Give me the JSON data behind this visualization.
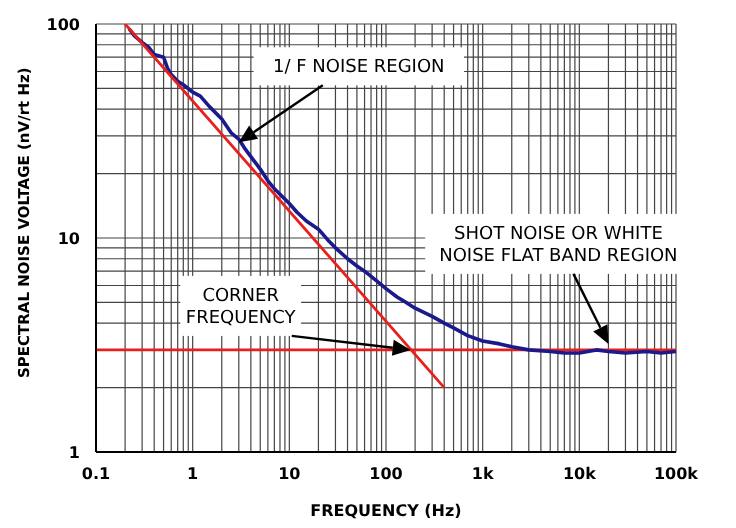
{
  "chart_data": {
    "type": "line",
    "xlabel": "FREQUENCY  (Hz)",
    "ylabel": "SPECTRAL NOISE VOLTAGE (nV/rt Hz)",
    "log": "xy",
    "grid": true,
    "marker": "none",
    "line_style": "solid",
    "xlim": [
      0.1,
      100000
    ],
    "ylim": [
      1,
      100
    ],
    "xticks": [
      {
        "value": 0.1,
        "label": "0.1"
      },
      {
        "value": 0.2,
        "label": null
      },
      {
        "value": 0.3,
        "label": null
      },
      {
        "value": 0.4,
        "label": null
      },
      {
        "value": 0.5,
        "label": null
      },
      {
        "value": 0.6,
        "label": null
      },
      {
        "value": 0.7,
        "label": null
      },
      {
        "value": 0.8,
        "label": null
      },
      {
        "value": 0.9,
        "label": null
      },
      {
        "value": 1,
        "label": "1"
      },
      {
        "value": 2,
        "label": null
      },
      {
        "value": 3,
        "label": null
      },
      {
        "value": 4,
        "label": null
      },
      {
        "value": 5,
        "label": null
      },
      {
        "value": 6,
        "label": null
      },
      {
        "value": 7,
        "label": null
      },
      {
        "value": 8,
        "label": null
      },
      {
        "value": 9,
        "label": null
      },
      {
        "value": 10,
        "label": "10"
      },
      {
        "value": 20,
        "label": null
      },
      {
        "value": 30,
        "label": null
      },
      {
        "value": 40,
        "label": null
      },
      {
        "value": 50,
        "label": null
      },
      {
        "value": 60,
        "label": null
      },
      {
        "value": 70,
        "label": null
      },
      {
        "value": 80,
        "label": null
      },
      {
        "value": 90,
        "label": null
      },
      {
        "value": 100,
        "label": "100"
      },
      {
        "value": 200,
        "label": null
      },
      {
        "value": 300,
        "label": null
      },
      {
        "value": 400,
        "label": null
      },
      {
        "value": 500,
        "label": null
      },
      {
        "value": 600,
        "label": null
      },
      {
        "value": 700,
        "label": null
      },
      {
        "value": 800,
        "label": null
      },
      {
        "value": 900,
        "label": null
      },
      {
        "value": 1000,
        "label": "1k"
      },
      {
        "value": 2000,
        "label": null
      },
      {
        "value": 3000,
        "label": null
      },
      {
        "value": 4000,
        "label": null
      },
      {
        "value": 5000,
        "label": null
      },
      {
        "value": 6000,
        "label": null
      },
      {
        "value": 7000,
        "label": null
      },
      {
        "value": 8000,
        "label": null
      },
      {
        "value": 9000,
        "label": null
      },
      {
        "value": 10000,
        "label": "10k"
      },
      {
        "value": 20000,
        "label": null
      },
      {
        "value": 30000,
        "label": null
      },
      {
        "value": 40000,
        "label": null
      },
      {
        "value": 50000,
        "label": null
      },
      {
        "value": 60000,
        "label": null
      },
      {
        "value": 70000,
        "label": null
      },
      {
        "value": 80000,
        "label": null
      },
      {
        "value": 90000,
        "label": null
      },
      {
        "value": 100000,
        "label": "100k"
      }
    ],
    "yticks": [
      1,
      {
        "value": 2,
        "label": null
      },
      {
        "value": 3,
        "label": null
      },
      {
        "value": 4,
        "label": null
      },
      {
        "value": 5,
        "label": null
      },
      {
        "value": 6,
        "label": null
      },
      {
        "value": 7,
        "label": null
      },
      {
        "value": 8,
        "label": null
      },
      {
        "value": 9,
        "label": null
      },
      10,
      {
        "value": 20,
        "label": null
      },
      {
        "value": 30,
        "label": null
      },
      {
        "value": 40,
        "label": null
      },
      {
        "value": 50,
        "label": null
      },
      {
        "value": 60,
        "label": null
      },
      {
        "value": 70,
        "label": null
      },
      {
        "value": 80,
        "label": null
      },
      {
        "value": 90,
        "label": null
      },
      100
    ],
    "series": [
      {
        "color": "#1a1a8c",
        "x": [
          0.22,
          0.25,
          0.3,
          0.35,
          0.4,
          0.5,
          0.55,
          0.6,
          0.7,
          0.8,
          1,
          1.2,
          1.5,
          2,
          2.5,
          3,
          3.5,
          4,
          5,
          6,
          7,
          8,
          10,
          12,
          15,
          20,
          25,
          30,
          40,
          50,
          60,
          80,
          100,
          130,
          150,
          200,
          300,
          400,
          500,
          700,
          1000,
          1500,
          2000,
          3000,
          5000,
          7000,
          10000,
          15000,
          20000,
          30000,
          50000,
          70000,
          100000
        ],
        "values": [
          95,
          88,
          82,
          78,
          72,
          70,
          62,
          58,
          54,
          52,
          48,
          46,
          41,
          36,
          31,
          29,
          26,
          24,
          21,
          18.5,
          17,
          16,
          14.5,
          13.2,
          12,
          11,
          9.8,
          9,
          8,
          7.4,
          7,
          6.3,
          5.8,
          5.3,
          5.1,
          4.7,
          4.3,
          4,
          3.8,
          3.5,
          3.3,
          3.2,
          3.1,
          3,
          2.95,
          2.9,
          2.9,
          3,
          2.95,
          2.9,
          2.95,
          2.9,
          2.95
        ]
      },
      {
        "color": "#e8201c",
        "x": [
          0.2,
          400
        ],
        "values": [
          100,
          2
        ]
      }
    ],
    "ref_lines": [
      {
        "axis": "y",
        "value": 3,
        "label": null,
        "color": "#e8201c"
      }
    ],
    "annotations": [
      {
        "text": "1/ F NOISE REGION",
        "x": 3,
        "y": 28
      },
      {
        "text": "SHOT NOISE OR WHITE\nNOISE FLAT BAND REGION",
        "x": 20000,
        "y": 3.2
      },
      {
        "text": "CORNER\nFREQUENCY",
        "x": 180,
        "y": 3
      }
    ]
  }
}
